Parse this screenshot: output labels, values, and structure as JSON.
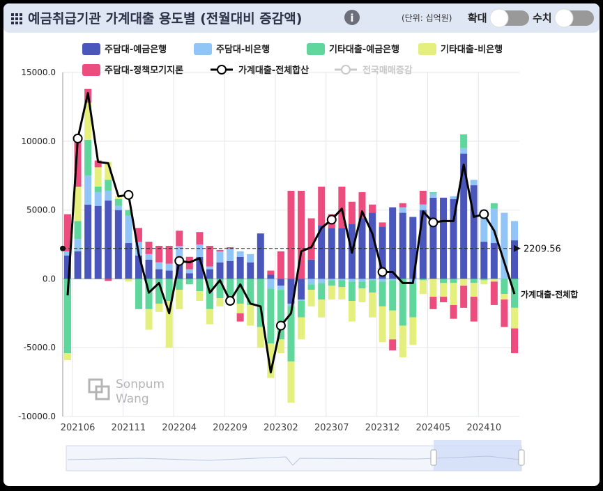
{
  "header": {
    "title": "예금취급기관 가계대출 용도별 (전월대비 증감액)",
    "unit": "(단위: 십억원)",
    "toggles": [
      "확대",
      "수치"
    ]
  },
  "watermark": [
    "Sonpum",
    "Wang"
  ],
  "chart_data": {
    "type": "bar",
    "stacked": true,
    "categories": [
      null,
      "202106",
      null,
      null,
      null,
      null,
      "202111",
      null,
      null,
      null,
      null,
      "202204",
      null,
      null,
      null,
      null,
      "202209",
      null,
      null,
      null,
      null,
      "202302",
      null,
      null,
      null,
      null,
      "202307",
      null,
      null,
      null,
      null,
      "202312",
      null,
      null,
      null,
      null,
      "202405",
      null,
      null,
      null,
      null,
      "202410",
      null,
      null,
      null
    ],
    "ylim": [
      -10000,
      15000
    ],
    "yticks": [
      {
        "value": -10000,
        "label": "-10000.0"
      },
      {
        "value": -5000,
        "label": "-5000.0"
      },
      {
        "value": 0,
        "label": "0.0"
      },
      {
        "value": 5000,
        "label": "5000.0"
      },
      {
        "value": 10000,
        "label": "10000.0"
      },
      {
        "value": 15000,
        "label": "15000.0"
      }
    ],
    "grid": true,
    "reference_line": 2209.56,
    "end_label": "가계대출-전체합",
    "series": [
      {
        "name": "주담대-예금은행",
        "type": "bar",
        "color": "#4b56bd",
        "values": [
          1700,
          2000,
          5400,
          5300,
          5700,
          5000,
          2600,
          1700,
          1400,
          700,
          600,
          1400,
          400,
          1600,
          700,
          1200,
          1300,
          1600,
          1200,
          3300,
          300,
          -500,
          -1800,
          -1500,
          1400,
          3900,
          3700,
          3700,
          4000,
          4400,
          4800,
          3800,
          5200,
          4800,
          4500,
          5000,
          5900,
          5900,
          5800,
          9100,
          6800,
          2700,
          2600,
          0,
          2800
        ]
      },
      {
        "name": "주담대-비은행",
        "type": "bar",
        "color": "#92c5f7",
        "values": [
          300,
          900,
          2100,
          1000,
          700,
          300,
          2000,
          1000,
          400,
          500,
          500,
          1000,
          300,
          900,
          200,
          800,
          900,
          400,
          600,
          0,
          -700,
          -300,
          -200,
          -100,
          -400,
          -300,
          -100,
          -100,
          -200,
          -200,
          -100,
          -200,
          -100,
          400,
          -300,
          400,
          300,
          0,
          200,
          400,
          400,
          2300,
          2500,
          4800,
          1400
        ]
      },
      {
        "name": "기타대출-예금은행",
        "type": "bar",
        "color": "#5fd69b",
        "values": [
          -5400,
          1300,
          2600,
          400,
          800,
          500,
          400,
          -2200,
          -2200,
          -1800,
          -1600,
          -800,
          -400,
          -900,
          -2200,
          -1400,
          -1400,
          -1800,
          -1900,
          -3500,
          -4000,
          -3600,
          -4000,
          -1200,
          -400,
          -1200,
          -400,
          -500,
          -1400,
          -500,
          -900,
          -1800,
          -2200,
          -3400,
          -2500,
          -100,
          100,
          -300,
          -300,
          1000,
          -300,
          -100,
          400,
          -1100,
          -2100
        ]
      },
      {
        "name": "기타대출-비은행",
        "type": "bar",
        "color": "#e4ef7e",
        "values": [
          -500,
          2500,
          2700,
          1400,
          1300,
          200,
          -200,
          0,
          -1500,
          -600,
          -3400,
          -1400,
          0,
          -700,
          -1100,
          -600,
          -500,
          -700,
          -1500,
          -1500,
          -2500,
          -1000,
          -3000,
          -1600,
          -1200,
          -1300,
          -1000,
          -900,
          -1500,
          -1000,
          -1800,
          -2600,
          -2100,
          -2300,
          -2000,
          -1000,
          -1300,
          -1000,
          -1600,
          -500,
          -1000,
          -300,
          -200,
          -400,
          -1500
        ]
      },
      {
        "name": "주담대-정책모기지론",
        "type": "bar",
        "color": "#ec4d7e",
        "values": [
          2700,
          3300,
          1000,
          500,
          -150,
          0,
          0,
          1000,
          900,
          1200,
          1300,
          1100,
          900,
          900,
          1500,
          100,
          100,
          -600,
          0,
          0,
          300,
          2000,
          6400,
          6400,
          3000,
          2800,
          1000,
          3000,
          1600,
          1900,
          600,
          300,
          -800,
          300,
          0,
          1000,
          -900,
          -400,
          -1000,
          -1600,
          -1800,
          0,
          -1700,
          -2000,
          -1800
        ]
      },
      {
        "name": "가계대출-전체합산",
        "type": "line",
        "color": "#000000",
        "values": [
          -1200,
          10200,
          13500,
          8500,
          8400,
          6000,
          6100,
          1800,
          -1000,
          -300,
          -2500,
          1300,
          1200,
          1500,
          -1000,
          -100,
          -1600,
          -400,
          -1800,
          -2000,
          -6800,
          -3400,
          -2500,
          2000,
          2300,
          3700,
          4300,
          5100,
          1900,
          4900,
          3300,
          500,
          500,
          -300,
          -300,
          4900,
          4100,
          4200,
          4200,
          8300,
          4500,
          4700,
          3500,
          1200,
          -1100
        ]
      },
      {
        "name": "전국매매증감",
        "type": "line",
        "color": "#c8c8c8",
        "visible": false
      }
    ]
  }
}
